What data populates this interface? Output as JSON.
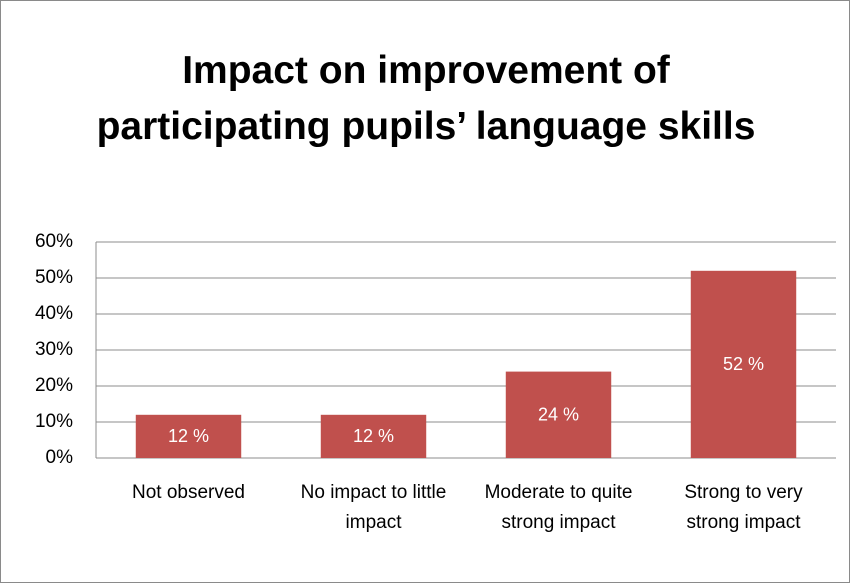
{
  "chart_data": {
    "type": "bar",
    "title": "Impact on improvement of participating pupils’ language skills",
    "categories": [
      "Not observed",
      "No impact to little impact",
      "Moderate to quite strong impact",
      "Strong to very strong impact"
    ],
    "values": [
      12,
      12,
      24,
      52
    ],
    "value_labels": [
      "12 %",
      "12 %",
      "24 %",
      "52 %"
    ],
    "color": "#c0504d",
    "ylim": [
      0,
      60
    ],
    "yticks": [
      {
        "value": 0,
        "label": "0%"
      },
      {
        "value": 10,
        "label": "10%"
      },
      {
        "value": 20,
        "label": "20%"
      },
      {
        "value": 30,
        "label": "30%"
      },
      {
        "value": 40,
        "label": "40%"
      },
      {
        "value": 50,
        "label": "50%"
      },
      {
        "value": 60,
        "label": "60%"
      }
    ],
    "grid": true
  }
}
